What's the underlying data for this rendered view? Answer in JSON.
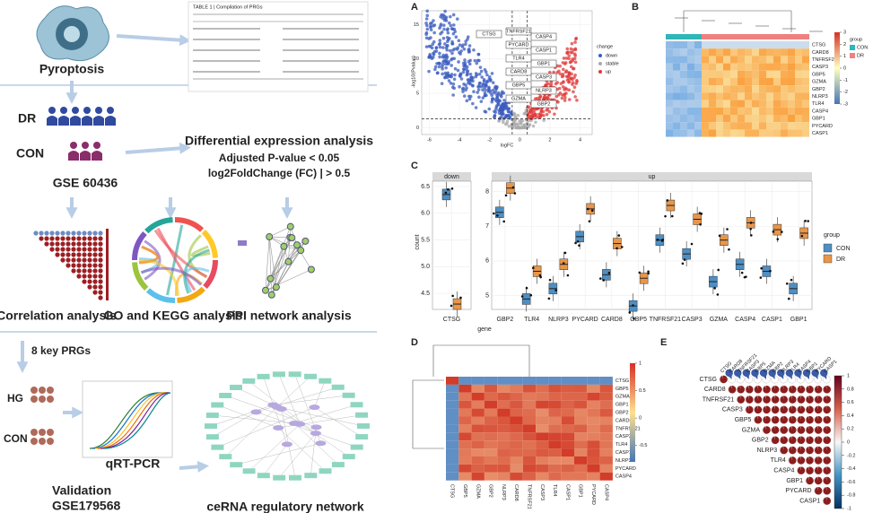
{
  "workflow": {
    "pyroptosis": "Pyroptosis",
    "table_title": "TABLE 1 | Compilation of PRGs",
    "dr": "DR",
    "con": "CON",
    "dataset": "GSE 60436",
    "dea_title": "Differential expression analysis",
    "dea_p": "Adjusted P-value < 0.05",
    "dea_fc": "log2FoldChange (FC) | > 0.5",
    "correlation": "Correlation analysis",
    "go_kegg": "GO and KEGG analysis",
    "ppi": "PPI network analysis",
    "key_prgs": "8 key PRGs",
    "hg": "HG",
    "con2": "CON",
    "qrt": "qRT-PCR",
    "validation": "Validation",
    "validation_dataset": "GSE179568",
    "cerna": "ceRNA regulatory network"
  },
  "panels": {
    "a": {
      "label": "A",
      "y_label": "-log10(Pvalue)",
      "x_label": "logFC",
      "xlim": [
        -6.5,
        4.8
      ],
      "xticks": [
        -6,
        -4,
        -2,
        0,
        2,
        4
      ],
      "ylim": [
        -1,
        17
      ],
      "yticks": [
        0,
        5,
        10,
        15
      ],
      "legend_title": "change",
      "legend": [
        "down",
        "stable",
        "up"
      ],
      "genes": [
        "CTSG",
        "CASP4",
        "TNFRSF21",
        "CASP1",
        "PYCARD",
        "GBP1",
        "TLR4",
        "CASP3",
        "CARD8",
        "NLRP3",
        "GBP5",
        "GBP2",
        "GZMA"
      ]
    },
    "b": {
      "label": "B",
      "genes": [
        "CTSG",
        "CARD8",
        "TNFRSF21",
        "CASP3",
        "GBP5",
        "GZMA",
        "GBP2",
        "NLRP3",
        "TLR4",
        "CASP4",
        "GBP1",
        "PYCARD",
        "CASP1"
      ],
      "legend_title": "group",
      "groups": [
        "CON",
        "DR"
      ],
      "colorbar_ticks": [
        3,
        2,
        1,
        0,
        -1,
        -2,
        -3
      ]
    },
    "c": {
      "type": "box",
      "label": "C",
      "y_label": "count",
      "x_label": "gene",
      "legend_title": "group",
      "groups": [
        {
          "name": "CON",
          "color": "#4d8fc4"
        },
        {
          "name": "DR",
          "color": "#e8964a"
        }
      ],
      "facets": [
        {
          "name": "down",
          "ylim": [
            4.2,
            6.6
          ],
          "yticks": [
            {
              "value": 4.5,
              "label": "4.5"
            },
            {
              "value": 5,
              "label": "5.0"
            },
            {
              "value": 5.5,
              "label": "5.5"
            },
            {
              "value": 6,
              "label": "6.0"
            },
            {
              "value": 6.5,
              "label": "6.5"
            }
          ],
          "categories": [
            "CTSG"
          ],
          "con": [
            6.35
          ],
          "dr": [
            4.3
          ]
        },
        {
          "name": "up",
          "ylim": [
            4.6,
            8.3
          ],
          "yticks": [
            5,
            6,
            7,
            8
          ],
          "categories": [
            "GBP2",
            "TLR4",
            "NLRP3",
            "PYCARD",
            "CARD8",
            "GBP5",
            "TNFRSF21",
            "CASP3",
            "GZMA",
            "CASP4",
            "CASP1",
            "GBP1"
          ],
          "con": [
            7.4,
            4.9,
            5.2,
            6.7,
            5.6,
            4.7,
            6.6,
            6.2,
            5.4,
            5.9,
            5.7,
            5.2
          ],
          "dr": [
            8.1,
            5.7,
            5.9,
            7.5,
            6.5,
            5.5,
            7.6,
            7.2,
            6.6,
            7.1,
            6.9,
            6.8
          ]
        }
      ]
    },
    "d": {
      "label": "D",
      "rows": [
        "CTSG",
        "GBP5",
        "GZMA",
        "GBP1",
        "GBP2",
        "CARD8",
        "TNFRSF21",
        "CASP3",
        "TLR4",
        "CASP1",
        "NLRP3",
        "PYCARD",
        "CASP4"
      ],
      "columns": [
        "CTSG",
        "GBP5",
        "GZMA",
        "GBP2",
        "NLRP3",
        "CARD8",
        "TNFRSF21",
        "CASP3",
        "TLR4",
        "CASP1",
        "GBP1",
        "PYCARD",
        "CASP4"
      ],
      "colorbar_ticks": [
        1,
        0.5,
        0,
        -0.5
      ]
    },
    "e": {
      "label": "E",
      "genes": [
        "CTSG",
        "CARD8",
        "TNFRSF21",
        "CASP3",
        "GBP5",
        "GZMA",
        "GBP2",
        "NLRP3",
        "TLR4",
        "CASP4",
        "GBP1",
        "PYCARD",
        "CASP1"
      ],
      "colorbar_ticks": [
        1,
        0.8,
        0.6,
        0.4,
        0.2,
        0,
        -0.2,
        -0.4,
        -0.6,
        -0.8,
        -1
      ]
    }
  }
}
